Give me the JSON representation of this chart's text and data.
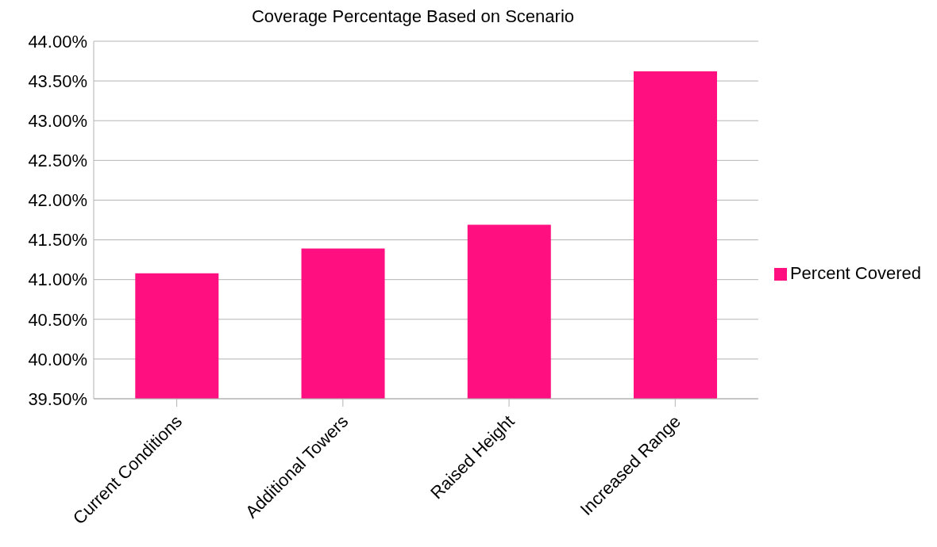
{
  "chart_data": {
    "type": "bar",
    "title": "Coverage Percentage Based on Scenario",
    "categories": [
      "Current Conditions",
      "Additional Towers",
      "Raised Height",
      "Increased Range"
    ],
    "series": [
      {
        "name": "Percent Covered",
        "color": "#ff0f80",
        "values": [
          41.08,
          41.39,
          41.69,
          43.62
        ]
      }
    ],
    "ylim": [
      39.5,
      44
    ],
    "yticks": [
      {
        "value": 39.5,
        "label": "39.50%"
      },
      {
        "value": 40,
        "label": "40.00%"
      },
      {
        "value": 40.5,
        "label": "40.50%"
      },
      {
        "value": 41,
        "label": "41.00%"
      },
      {
        "value": 41.5,
        "label": "41.50%"
      },
      {
        "value": 42,
        "label": "42.00%"
      },
      {
        "value": 42.5,
        "label": "42.50%"
      },
      {
        "value": 43,
        "label": "43.00%"
      },
      {
        "value": 43.5,
        "label": "43.50%"
      },
      {
        "value": 44,
        "label": "44.00%"
      }
    ],
    "grid": "y",
    "legend": "right"
  }
}
